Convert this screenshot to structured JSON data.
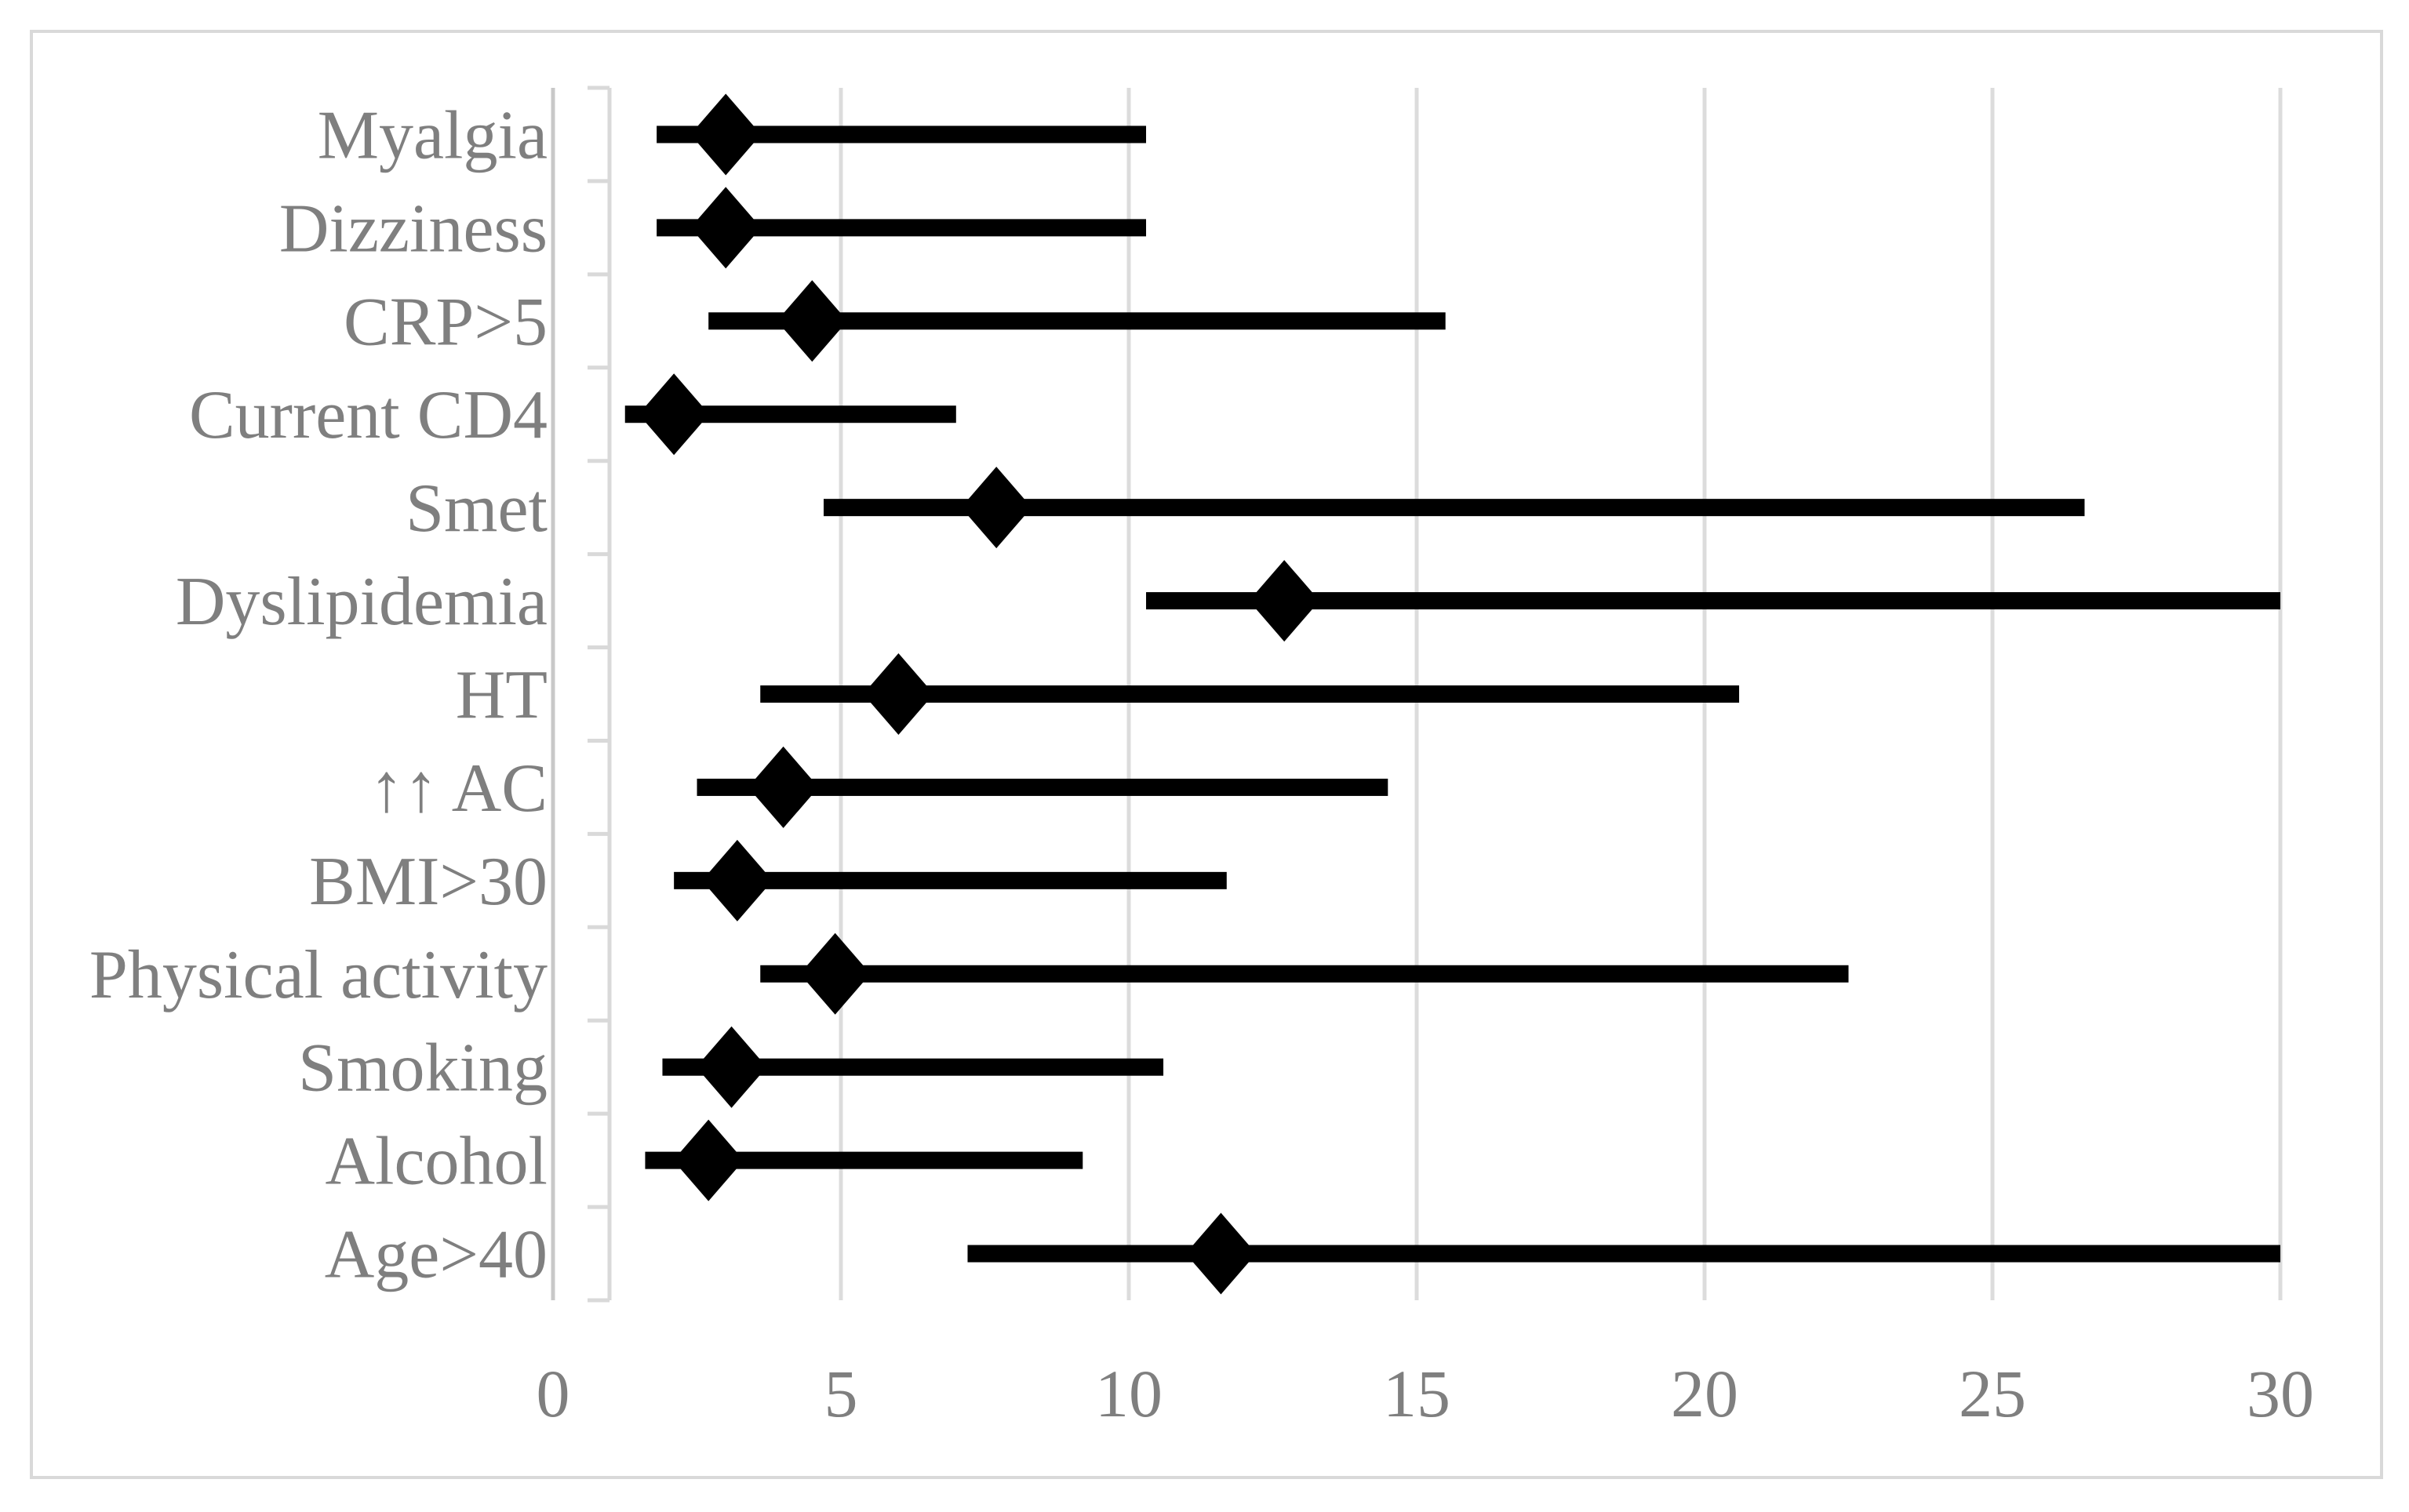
{
  "chart_data": {
    "type": "scatter",
    "subtype": "forest-plot",
    "title": "",
    "xlabel": "",
    "ylabel": "",
    "xlim": [
      0,
      30
    ],
    "x_ticks": [
      0,
      5,
      10,
      15,
      20,
      25,
      30
    ],
    "x_tick_labels": [
      "0",
      "5",
      "10",
      "15",
      "20",
      "25",
      "30"
    ],
    "grid": "vertical-major",
    "legend": "none",
    "categories": [
      "Myalgia",
      "Dizziness",
      "CRP>5",
      "Current CD4",
      "Smet",
      "Dyslipidemia",
      "HT",
      "↑↑ AC",
      "BMI>30",
      "Physical activity",
      "Smoking",
      "Alcohol",
      "Age>40"
    ],
    "series": [
      {
        "name": "odds-ratio-with-95ci",
        "marker": "diamond",
        "estimates": [
          3.0,
          3.0,
          4.5,
          2.1,
          7.7,
          12.7,
          6.0,
          4.0,
          3.2,
          4.9,
          3.1,
          2.7,
          11.6
        ],
        "ci_low": [
          1.8,
          1.8,
          2.7,
          1.25,
          4.7,
          10.3,
          3.6,
          2.5,
          2.1,
          3.6,
          1.9,
          1.6,
          7.2
        ],
        "ci_high": [
          10.3,
          10.3,
          15.5,
          7.0,
          26.6,
          30.0,
          20.6,
          14.5,
          11.7,
          22.5,
          10.6,
          9.2,
          30.0
        ]
      }
    ]
  },
  "colors": {
    "background": "#ffffff",
    "frame_border": "#d9d9d9",
    "gridline": "#dcdcdc",
    "zero_gridline": "#c8c8c8",
    "category_axis": "#d9d9d9",
    "marker": "#000000",
    "ci_bar": "#000000",
    "label_text": "#7f7f7f"
  }
}
